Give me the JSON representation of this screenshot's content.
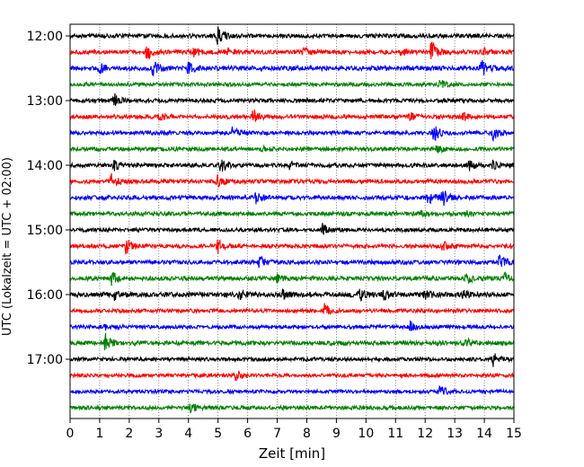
{
  "chart_data": {
    "type": "line",
    "title": "",
    "xlabel": "Zeit  [min]",
    "ylabel": "UTC (Lokalzeit = UTC + 02:00)",
    "xlim": [
      0,
      15
    ],
    "x_ticks": [
      "0",
      "1",
      "2",
      "3",
      "4",
      "5",
      "6",
      "7",
      "8",
      "9",
      "10",
      "11",
      "12",
      "13",
      "14",
      "15"
    ],
    "y_ticks": [
      {
        "label": "12:00",
        "trace": 0
      },
      {
        "label": "13:00",
        "trace": 4
      },
      {
        "label": "14:00",
        "trace": 8
      },
      {
        "label": "15:00",
        "trace": 12
      },
      {
        "label": "16:00",
        "trace": 16
      },
      {
        "label": "17:00",
        "trace": 20
      }
    ],
    "grid": {
      "x": true,
      "style": "dotted"
    },
    "colors": [
      "#000000",
      "#ff0000",
      "#0000ff",
      "#008000"
    ],
    "trace_minutes": 15,
    "traces": [
      {
        "start": "12:00",
        "color": "#000000",
        "noise": 0.35,
        "events": [
          [
            5.0,
            1.0
          ]
        ]
      },
      {
        "start": "12:15",
        "color": "#ff0000",
        "noise": 0.35,
        "events": [
          [
            2.6,
            0.9
          ],
          [
            4.2,
            0.5
          ],
          [
            5.3,
            0.5
          ],
          [
            7.9,
            0.4
          ],
          [
            11.2,
            0.4
          ],
          [
            12.2,
            1.4
          ],
          [
            14.0,
            0.4
          ]
        ]
      },
      {
        "start": "12:30",
        "color": "#0000ff",
        "noise": 0.45,
        "events": [
          [
            1.0,
            0.6
          ],
          [
            2.8,
            1.0
          ],
          [
            4.0,
            0.7
          ],
          [
            13.9,
            1.0
          ]
        ]
      },
      {
        "start": "12:45",
        "color": "#008000",
        "noise": 0.25,
        "events": [
          [
            12.5,
            0.6
          ]
        ]
      },
      {
        "start": "13:00",
        "color": "#000000",
        "noise": 0.3,
        "events": [
          [
            1.5,
            0.8
          ]
        ]
      },
      {
        "start": "13:15",
        "color": "#ff0000",
        "noise": 0.3,
        "events": [
          [
            3.0,
            0.6
          ],
          [
            6.2,
            0.9
          ],
          [
            11.5,
            0.4
          ],
          [
            13.3,
            0.5
          ]
        ]
      },
      {
        "start": "13:30",
        "color": "#0000ff",
        "noise": 0.3,
        "events": [
          [
            5.5,
            0.7
          ],
          [
            12.3,
            1.1
          ],
          [
            14.3,
            0.8
          ]
        ]
      },
      {
        "start": "13:45",
        "color": "#008000",
        "noise": 0.3,
        "events": [
          [
            6.5,
            0.3
          ],
          [
            12.4,
            0.4
          ]
        ]
      },
      {
        "start": "14:00",
        "color": "#000000",
        "noise": 0.3,
        "events": [
          [
            1.5,
            0.6
          ],
          [
            5.1,
            0.8
          ],
          [
            7.4,
            0.5
          ],
          [
            13.5,
            0.5
          ],
          [
            14.3,
            0.5
          ]
        ]
      },
      {
        "start": "14:15",
        "color": "#ff0000",
        "noise": 0.35,
        "events": [
          [
            1.4,
            0.9
          ],
          [
            5.0,
            0.8
          ]
        ]
      },
      {
        "start": "14:30",
        "color": "#0000ff",
        "noise": 0.35,
        "events": [
          [
            6.3,
            0.7
          ],
          [
            12.1,
            0.8
          ],
          [
            12.6,
            1.0
          ]
        ]
      },
      {
        "start": "14:45",
        "color": "#008000",
        "noise": 0.35,
        "events": [
          [
            11.8,
            0.4
          ],
          [
            13.4,
            0.4
          ]
        ]
      },
      {
        "start": "15:00",
        "color": "#000000",
        "noise": 0.25,
        "events": [
          [
            8.5,
            0.8
          ]
        ]
      },
      {
        "start": "15:15",
        "color": "#ff0000",
        "noise": 0.3,
        "events": [
          [
            1.9,
            0.9
          ],
          [
            5.0,
            0.8
          ],
          [
            12.6,
            0.5
          ]
        ]
      },
      {
        "start": "15:30",
        "color": "#0000ff",
        "noise": 0.35,
        "events": [
          [
            6.4,
            0.7
          ],
          [
            14.5,
            0.8
          ]
        ]
      },
      {
        "start": "15:45",
        "color": "#008000",
        "noise": 0.35,
        "events": [
          [
            1.4,
            0.9
          ],
          [
            7.0,
            0.4
          ],
          [
            13.4,
            0.6
          ],
          [
            14.7,
            0.5
          ]
        ]
      },
      {
        "start": "16:00",
        "color": "#000000",
        "noise": 0.5,
        "events": [
          [
            1.5,
            0.5
          ],
          [
            5.7,
            0.5
          ],
          [
            7.2,
            0.5
          ],
          [
            9.8,
            0.6
          ],
          [
            10.6,
            0.6
          ],
          [
            12.0,
            0.7
          ],
          [
            13.3,
            0.4
          ]
        ]
      },
      {
        "start": "16:15",
        "color": "#ff0000",
        "noise": 0.25,
        "events": [
          [
            8.6,
            0.8
          ]
        ]
      },
      {
        "start": "16:30",
        "color": "#0000ff",
        "noise": 0.25,
        "events": [
          [
            1.2,
            0.5
          ],
          [
            11.5,
            0.7
          ]
        ]
      },
      {
        "start": "16:45",
        "color": "#008000",
        "noise": 0.4,
        "events": [
          [
            1.2,
            1.0
          ],
          [
            13.4,
            0.5
          ]
        ]
      },
      {
        "start": "17:00",
        "color": "#000000",
        "noise": 0.25,
        "events": [
          [
            14.3,
            0.8
          ]
        ]
      },
      {
        "start": "17:15",
        "color": "#ff0000",
        "noise": 0.2,
        "events": [
          [
            5.6,
            0.6
          ]
        ]
      },
      {
        "start": "17:30",
        "color": "#0000ff",
        "noise": 0.2,
        "events": [
          [
            12.5,
            0.7
          ]
        ]
      },
      {
        "start": "17:45",
        "color": "#008000",
        "noise": 0.25,
        "events": [
          [
            4.1,
            0.9
          ]
        ]
      }
    ]
  }
}
